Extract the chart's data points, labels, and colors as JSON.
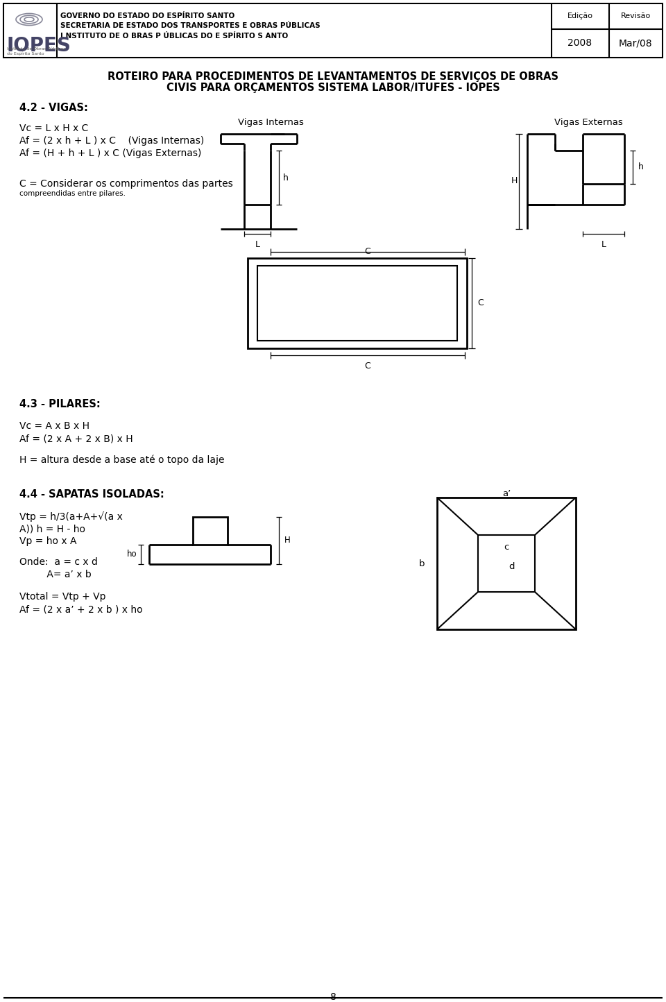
{
  "page_title_line1": "ROTEIRO PARA PROCEDIMENTOS DE LEVANTAMENTOS DE SERVIÇOS DE OBRAS",
  "page_title_line2": "CIVIS PARA ORÇAMENTOS SISTEMA LABOR/ITUFES - IOPES",
  "header_line1": "GOVERNO DO ESTADO DO ESPÍRITO SANTO",
  "header_line2": "SECRETARIA DE ESTADO DOS TRANSPORTES E OBRAS PÚBLICAS",
  "header_line3": "I NSTITUTO DE O BRAS P ÚBLICAS DO E SPÍRITO S ANTO",
  "header_edicao_label": "Edição",
  "header_revisao_label": "Revisão",
  "header_edicao_value": "2008",
  "header_revisao_value": "Mar/08",
  "section_vigas": "4.2 - VIGAS:",
  "vigas_formula1": "Vc = L x H x C",
  "vigas_formula2": "Af = (2 x h + L ) x C    (Vigas Internas)",
  "vigas_formula3": "Af = (H + h + L ) x C (Vigas Externas)",
  "vigas_note1": "C = Considerar os comprimentos das partes",
  "vigas_note2": "compreendidas entre pilares.",
  "vigas_internas_label": "Vigas Internas",
  "vigas_externas_label": "Vigas Externas",
  "section_pilares": "4.3 - PILARES:",
  "pilares_formula1": "Vc = A x B x H",
  "pilares_formula2": "Af = (2 x A + 2 x B) x H",
  "pilares_formula3": "H = altura desde a base até o topo da laje",
  "section_sapatas": "4.4 - SAPATAS ISOLADAS:",
  "sapatas_formula1": "Vtp = h/3(a+A+√(a x",
  "sapatas_formula2": "A)) h = H - ho",
  "sapatas_formula3": "Vp = ho x A",
  "sapatas_note1": "Onde:  a = c x d",
  "sapatas_note2": "         A= a’ x b",
  "sapatas_formula4": "Vtotal = Vtp + Vp",
  "sapatas_formula5": "Af = (2 x a’ + 2 x b ) x ho",
  "page_number": "8",
  "bg_color": "#ffffff",
  "text_color": "#000000"
}
